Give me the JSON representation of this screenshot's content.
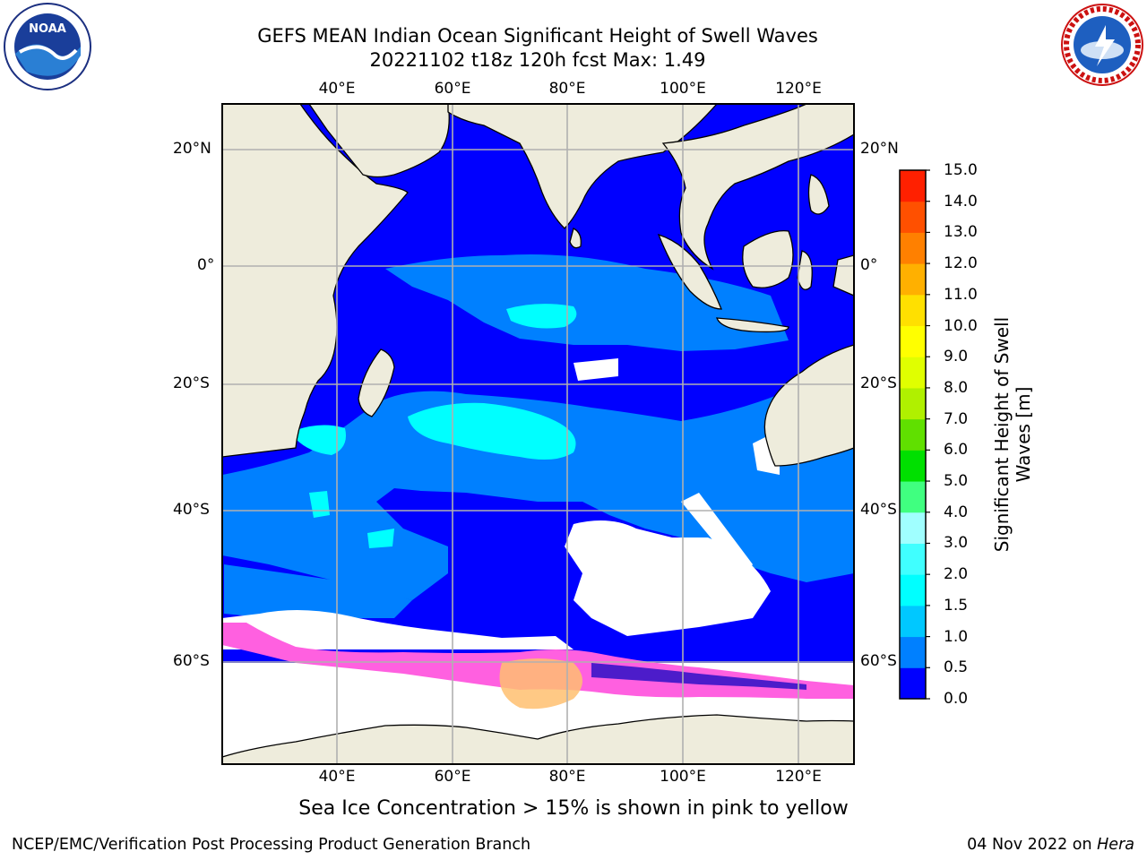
{
  "title_line1": "GEFS MEAN Indian Ocean Significant Height of Swell Waves",
  "title_line2": "20221102 t18z 120h fcst   Max: 1.49",
  "caption": "Sea Ice Concentration > 15% is shown in pink to yellow",
  "footer_left": "NCEP/EMC/Verification Post Processing Product Generation Branch",
  "footer_date": "04 Nov 2022 on ",
  "footer_machine": "Hera",
  "logos": {
    "left": "noaa-logo",
    "right": "national-weather-service-logo",
    "left_text": "NOAA",
    "right_text": "NATIONAL WEATHER SERVICE"
  },
  "map": {
    "lon_labels": [
      "40°E",
      "60°E",
      "80°E",
      "100°E",
      "120°E"
    ],
    "lat_labels": [
      "20°N",
      "0°",
      "20°S",
      "40°S",
      "60°S"
    ]
  },
  "colorbar": {
    "label_line1": "Significant Height of Swell",
    "label_line2": "Waves [m]",
    "ticks": [
      "0.0",
      "0.5",
      "1.0",
      "1.5",
      "2.0",
      "3.0",
      "4.0",
      "5.0",
      "6.0",
      "7.0",
      "8.0",
      "9.0",
      "10.0",
      "11.0",
      "12.0",
      "13.0",
      "14.0",
      "15.0"
    ],
    "colors": [
      "#0000ff",
      "#0080ff",
      "#00c8ff",
      "#00ffff",
      "#40ffff",
      "#a0ffff",
      "#40ff80",
      "#00e000",
      "#60e000",
      "#b0f000",
      "#e0ff00",
      "#ffff00",
      "#ffe000",
      "#ffb000",
      "#ff8000",
      "#ff5000",
      "#ff2000"
    ]
  },
  "colors": {
    "land": "#eeecdc",
    "ocean_low": "#0000ff",
    "ocean_mid": "#0080ff",
    "ocean_high": "#00ffff",
    "ice_pink": "#ff60e0",
    "ice_yellow": "#ffd070",
    "grid": "#b0b0b0"
  }
}
